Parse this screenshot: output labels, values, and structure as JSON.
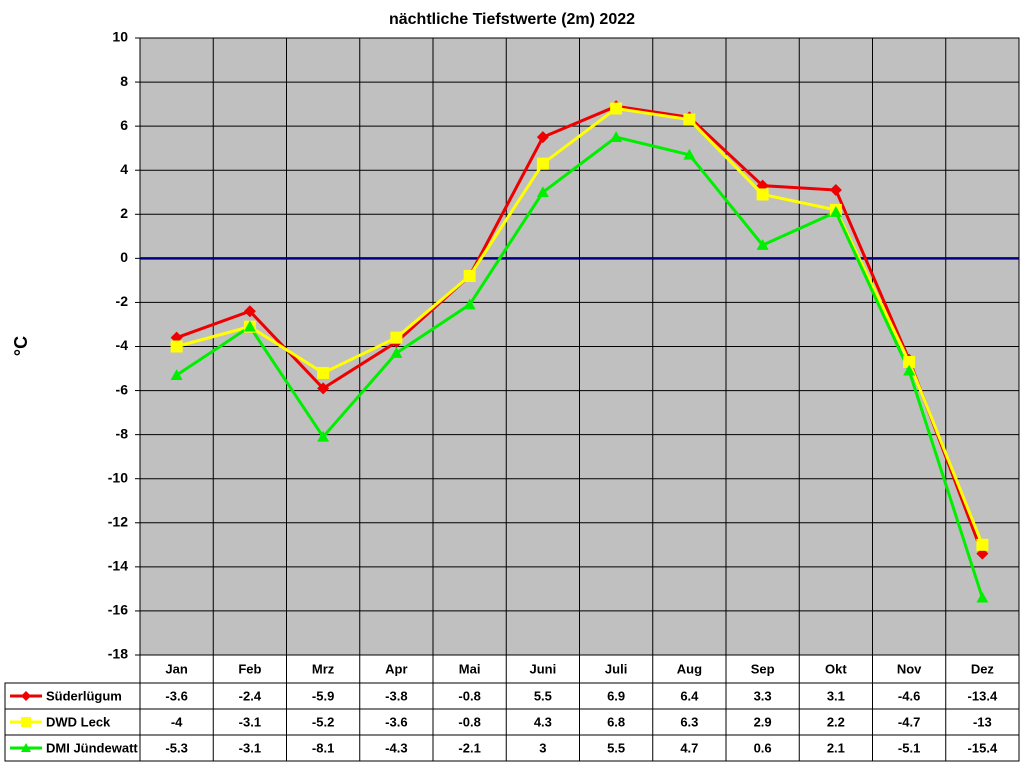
{
  "chart_data": {
    "type": "line",
    "title": "nächtliche Tiefstwerte (2m) 2022",
    "ylabel": "°C",
    "categories": [
      "Jan",
      "Feb",
      "Mrz",
      "Apr",
      "Mai",
      "Juni",
      "Juli",
      "Aug",
      "Sep",
      "Okt",
      "Nov",
      "Dez"
    ],
    "series": [
      {
        "name": "Süderlügum",
        "color": "#ee0000",
        "marker": "diamond",
        "values": [
          -3.6,
          -2.4,
          -5.9,
          -3.8,
          -0.8,
          5.5,
          6.9,
          6.4,
          3.3,
          3.1,
          -4.6,
          -13.4
        ]
      },
      {
        "name": "DWD Leck",
        "color": "#ffff00",
        "marker": "square",
        "values": [
          -4,
          -3.1,
          -5.2,
          -3.6,
          -0.8,
          4.3,
          6.8,
          6.3,
          2.9,
          2.2,
          -4.7,
          -13
        ]
      },
      {
        "name": "DMI Jündewatt",
        "color": "#00ee00",
        "marker": "triangle",
        "values": [
          -5.3,
          -3.1,
          -8.1,
          -4.3,
          -2.1,
          3,
          5.5,
          4.7,
          0.6,
          2.1,
          -5.1,
          -15.4
        ]
      }
    ],
    "ylim": [
      -18,
      10
    ],
    "yticks": [
      -18,
      -16,
      -14,
      -12,
      -10,
      -8,
      -6,
      -4,
      -2,
      0,
      2,
      4,
      6,
      8,
      10
    ],
    "grid": true,
    "plot_background": "#c0c0c0",
    "zero_line_color": "#000080"
  }
}
